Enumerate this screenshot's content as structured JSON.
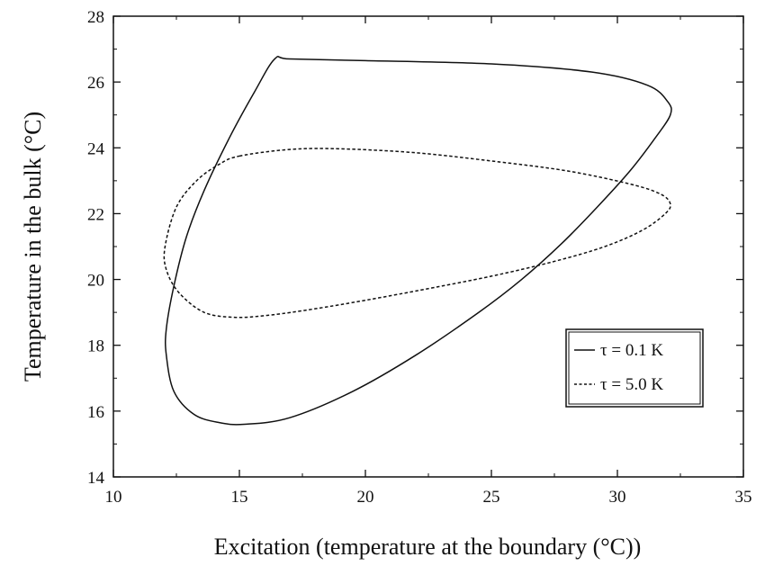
{
  "chart_data": {
    "type": "line",
    "title": "",
    "xlabel": "Excitation (temperature at the boundary (°C))",
    "ylabel": "Temperature in the bulk (°C)",
    "xlim": [
      10,
      35
    ],
    "ylim": [
      14,
      28
    ],
    "xticks": [
      10,
      15,
      20,
      25,
      30,
      35
    ],
    "yticks": [
      14,
      16,
      18,
      20,
      22,
      24,
      26,
      28
    ],
    "grid": false,
    "legend_position": "bottom-right",
    "series": [
      {
        "name": "τ = 0.1 K",
        "style": "solid",
        "color": "#111111",
        "x": [
          16.4,
          17.0,
          20.0,
          25.0,
          29.0,
          31.2,
          32.0,
          32.1,
          31.5,
          30.5,
          29.2,
          27.8,
          26.2,
          24.5,
          22.0,
          19.5,
          17.0,
          15.2,
          14.2,
          13.2,
          12.4,
          12.1,
          12.1,
          12.4,
          12.9,
          13.6,
          14.6,
          15.6,
          16.4
        ],
        "y": [
          26.7,
          26.7,
          26.65,
          26.55,
          26.3,
          25.9,
          25.4,
          25.0,
          24.3,
          23.3,
          22.2,
          21.1,
          20.0,
          19.0,
          17.7,
          16.6,
          15.8,
          15.6,
          15.65,
          15.9,
          16.6,
          17.7,
          18.5,
          19.8,
          21.3,
          22.7,
          24.3,
          25.7,
          26.7
        ]
      },
      {
        "name": "τ = 5.0 K",
        "style": "dashed",
        "color": "#111111",
        "x": [
          15.0,
          17.0,
          19.0,
          22.0,
          25.0,
          28.0,
          30.5,
          31.7,
          32.1,
          31.9,
          31.0,
          29.5,
          27.5,
          25.0,
          22.0,
          19.5,
          17.5,
          16.0,
          14.8,
          13.6,
          12.6,
          12.1,
          12.05,
          12.5,
          13.3,
          14.2,
          15.0
        ],
        "y": [
          23.75,
          23.95,
          23.97,
          23.85,
          23.6,
          23.3,
          22.9,
          22.6,
          22.3,
          22.0,
          21.5,
          21.0,
          20.55,
          20.1,
          19.65,
          19.3,
          19.05,
          18.9,
          18.85,
          19.0,
          19.6,
          20.3,
          21.0,
          22.2,
          23.0,
          23.5,
          23.75
        ]
      }
    ]
  }
}
